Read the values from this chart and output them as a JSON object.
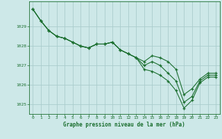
{
  "title": "Graphe pression niveau de la mer (hPa)",
  "bg_color": "#cde8e8",
  "plot_bg_color": "#cde8e8",
  "grid_color": "#aacccc",
  "line_color": "#1a6e2e",
  "xlim": [
    -0.5,
    23.5
  ],
  "ylim": [
    1024.5,
    1030.3
  ],
  "yticks": [
    1025,
    1026,
    1027,
    1028,
    1029
  ],
  "xticks": [
    0,
    1,
    2,
    3,
    4,
    5,
    6,
    7,
    8,
    9,
    10,
    11,
    12,
    13,
    14,
    15,
    16,
    17,
    18,
    19,
    20,
    21,
    22,
    23
  ],
  "series": [
    [
      1029.9,
      1029.3,
      1028.8,
      1028.5,
      1028.4,
      1028.2,
      1028.0,
      1027.9,
      1028.1,
      1028.1,
      1028.2,
      1027.8,
      1027.6,
      1027.4,
      1026.8,
      1026.7,
      1026.5,
      1026.2,
      1025.7,
      1024.8,
      1025.2,
      1026.1,
      1026.4,
      1026.4
    ],
    [
      1029.9,
      1029.3,
      1028.8,
      1028.5,
      1028.4,
      1028.2,
      1028.0,
      1027.9,
      1028.1,
      1028.1,
      1028.2,
      1027.8,
      1027.6,
      1027.4,
      1027.0,
      1027.2,
      1027.0,
      1026.6,
      1026.2,
      1025.1,
      1025.4,
      1026.2,
      1026.5,
      1026.5
    ],
    [
      1029.9,
      1029.3,
      1028.8,
      1028.5,
      1028.4,
      1028.2,
      1028.0,
      1027.9,
      1028.1,
      1028.1,
      1028.2,
      1027.8,
      1027.6,
      1027.4,
      1027.2,
      1027.5,
      1027.4,
      1027.2,
      1026.8,
      1025.5,
      1025.8,
      1026.3,
      1026.6,
      1026.6
    ]
  ]
}
